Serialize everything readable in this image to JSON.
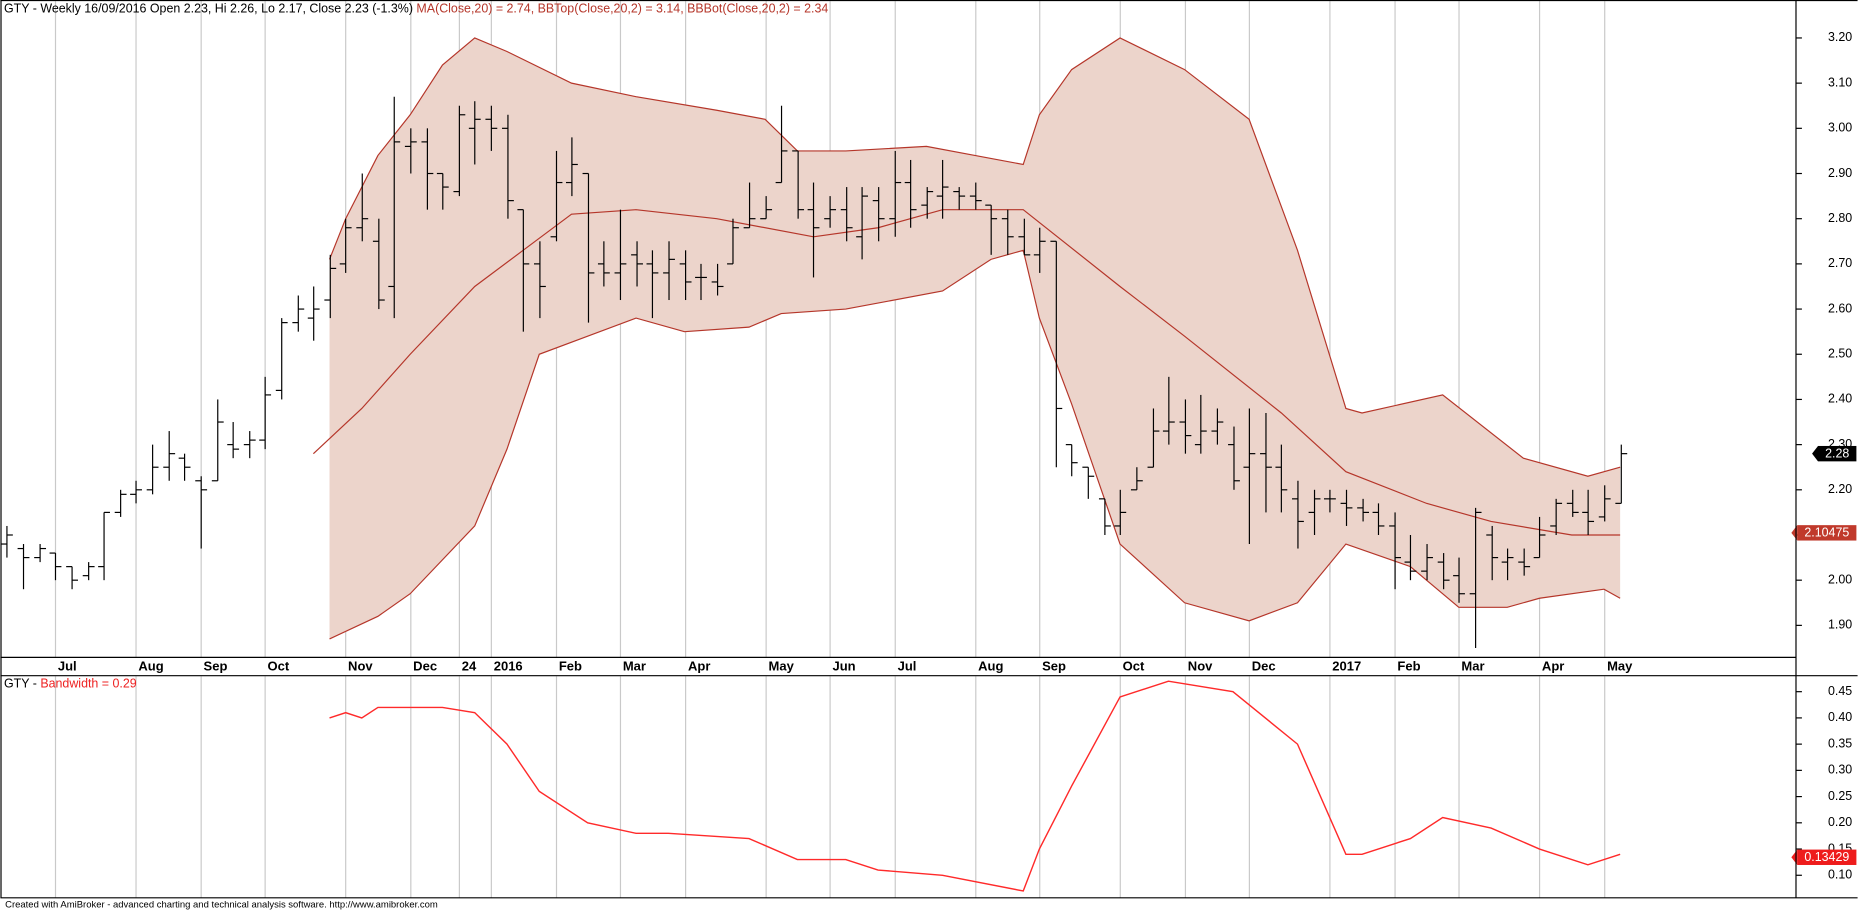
{
  "chart_data": [
    {
      "type": "ohlc",
      "title_parts": [
        {
          "text": "GTY - Weekly 16/09/2016 Open 2.23, Hi 2.26, Lo 2.17, Close 2.23 (-1.3%) ",
          "color": "#000000"
        },
        {
          "text": "MA(Close,20) = 2.74, ",
          "color": "#b5362a"
        },
        {
          "text": "BBTop(Close,20,2) = 3.14, ",
          "color": "#b5362a"
        },
        {
          "text": "BBBot(Close,20,2) = 2.34",
          "color": "#b5362a"
        }
      ],
      "bar_color": "#000000",
      "bars": [
        [
          2.08,
          2.12,
          2.05,
          2.1
        ],
        [
          2.07,
          2.08,
          1.98,
          2.05
        ],
        [
          2.05,
          2.08,
          2.04,
          2.07
        ],
        [
          2.06,
          2.06,
          2.0,
          2.03
        ],
        [
          2.03,
          2.03,
          1.98,
          2.0
        ],
        [
          2.01,
          2.04,
          2.0,
          2.03
        ],
        [
          2.03,
          2.15,
          2.0,
          2.15
        ],
        [
          2.15,
          2.2,
          2.14,
          2.19
        ],
        [
          2.19,
          2.22,
          2.17,
          2.2
        ],
        [
          2.2,
          2.3,
          2.19,
          2.25
        ],
        [
          2.25,
          2.33,
          2.22,
          2.28
        ],
        [
          2.27,
          2.28,
          2.22,
          2.25
        ],
        [
          2.22,
          2.23,
          2.07,
          2.2
        ],
        [
          2.22,
          2.4,
          2.22,
          2.35
        ],
        [
          2.3,
          2.35,
          2.27,
          2.29
        ],
        [
          2.3,
          2.33,
          2.27,
          2.31
        ],
        [
          2.31,
          2.45,
          2.29,
          2.41
        ],
        [
          2.42,
          2.58,
          2.4,
          2.57
        ],
        [
          2.57,
          2.63,
          2.55,
          2.6
        ],
        [
          2.58,
          2.65,
          2.53,
          2.6
        ],
        [
          2.62,
          2.72,
          2.58,
          2.69
        ],
        [
          2.7,
          2.8,
          2.68,
          2.78
        ],
        [
          2.78,
          2.9,
          2.75,
          2.8
        ],
        [
          2.75,
          2.8,
          2.6,
          2.62
        ],
        [
          2.65,
          3.07,
          2.58,
          2.97
        ],
        [
          2.96,
          3.0,
          2.9,
          2.97
        ],
        [
          2.97,
          3.0,
          2.82,
          2.9
        ],
        [
          2.9,
          2.9,
          2.82,
          2.87
        ],
        [
          2.86,
          3.05,
          2.85,
          3.03
        ],
        [
          3.0,
          3.06,
          2.92,
          3.02
        ],
        [
          3.02,
          3.05,
          2.95,
          3.0
        ],
        [
          3.0,
          3.03,
          2.8,
          2.84
        ],
        [
          2.82,
          2.82,
          2.55,
          2.7
        ],
        [
          2.7,
          2.75,
          2.58,
          2.65
        ],
        [
          2.76,
          2.95,
          2.75,
          2.88
        ],
        [
          2.88,
          2.98,
          2.85,
          2.92
        ],
        [
          2.9,
          2.9,
          2.57,
          2.68
        ],
        [
          2.7,
          2.75,
          2.65,
          2.68
        ],
        [
          2.68,
          2.82,
          2.62,
          2.7
        ],
        [
          2.72,
          2.75,
          2.65,
          2.7
        ],
        [
          2.7,
          2.73,
          2.58,
          2.68
        ],
        [
          2.68,
          2.75,
          2.62,
          2.71
        ],
        [
          2.7,
          2.73,
          2.62,
          2.66
        ],
        [
          2.67,
          2.7,
          2.62,
          2.67
        ],
        [
          2.66,
          2.7,
          2.63,
          2.65
        ],
        [
          2.7,
          2.8,
          2.7,
          2.78
        ],
        [
          2.78,
          2.88,
          2.78,
          2.8
        ],
        [
          2.8,
          2.85,
          2.8,
          2.82
        ],
        [
          2.88,
          3.05,
          2.88,
          2.95
        ],
        [
          2.95,
          2.95,
          2.8,
          2.82
        ],
        [
          2.82,
          2.88,
          2.67,
          2.78
        ],
        [
          2.8,
          2.85,
          2.78,
          2.82
        ],
        [
          2.82,
          2.87,
          2.75,
          2.78
        ],
        [
          2.76,
          2.87,
          2.71,
          2.85
        ],
        [
          2.84,
          2.87,
          2.75,
          2.8
        ],
        [
          2.8,
          2.95,
          2.76,
          2.88
        ],
        [
          2.88,
          2.93,
          2.78,
          2.82
        ],
        [
          2.83,
          2.87,
          2.8,
          2.86
        ],
        [
          2.85,
          2.93,
          2.8,
          2.87
        ],
        [
          2.86,
          2.87,
          2.82,
          2.85
        ],
        [
          2.85,
          2.88,
          2.82,
          2.84
        ],
        [
          2.83,
          2.83,
          2.72,
          2.8
        ],
        [
          2.8,
          2.82,
          2.72,
          2.76
        ],
        [
          2.76,
          2.8,
          2.72,
          2.72
        ],
        [
          2.72,
          2.78,
          2.68,
          2.75
        ],
        [
          2.75,
          2.75,
          2.25,
          2.38
        ],
        [
          2.3,
          2.3,
          2.23,
          2.26
        ],
        [
          2.25,
          2.25,
          2.18,
          2.23
        ],
        [
          2.18,
          2.18,
          2.1,
          2.12
        ],
        [
          2.12,
          2.2,
          2.1,
          2.15
        ],
        [
          2.2,
          2.25,
          2.2,
          2.22
        ],
        [
          2.25,
          2.38,
          2.25,
          2.33
        ],
        [
          2.33,
          2.45,
          2.3,
          2.35
        ],
        [
          2.35,
          2.4,
          2.28,
          2.32
        ],
        [
          2.3,
          2.41,
          2.28,
          2.33
        ],
        [
          2.33,
          2.38,
          2.3,
          2.35
        ],
        [
          2.3,
          2.34,
          2.2,
          2.22
        ],
        [
          2.25,
          2.38,
          2.08,
          2.28
        ],
        [
          2.28,
          2.37,
          2.15,
          2.25
        ],
        [
          2.25,
          2.3,
          2.15,
          2.2
        ],
        [
          2.18,
          2.22,
          2.07,
          2.13
        ],
        [
          2.15,
          2.2,
          2.1,
          2.18
        ],
        [
          2.18,
          2.2,
          2.15,
          2.18
        ],
        [
          2.17,
          2.2,
          2.12,
          2.16
        ],
        [
          2.16,
          2.18,
          2.13,
          2.15
        ],
        [
          2.15,
          2.17,
          2.1,
          2.12
        ],
        [
          2.12,
          2.15,
          1.98,
          2.05
        ],
        [
          2.04,
          2.1,
          2.0,
          2.02
        ],
        [
          2.02,
          2.08,
          2.0,
          2.05
        ],
        [
          2.04,
          2.06,
          1.98,
          2.0
        ],
        [
          2.01,
          2.05,
          1.95,
          1.97
        ],
        [
          1.97,
          2.16,
          1.85,
          2.15
        ],
        [
          2.1,
          2.12,
          2.0,
          2.05
        ],
        [
          2.04,
          2.07,
          2.0,
          2.05
        ],
        [
          2.04,
          2.07,
          2.01,
          2.03
        ],
        [
          2.05,
          2.14,
          2.05,
          2.1
        ],
        [
          2.12,
          2.18,
          2.1,
          2.17
        ],
        [
          2.17,
          2.2,
          2.14,
          2.15
        ],
        [
          2.15,
          2.2,
          2.1,
          2.13
        ],
        [
          2.14,
          2.21,
          2.13,
          2.18
        ],
        [
          2.17,
          2.3,
          2.17,
          2.28
        ]
      ],
      "ma": {
        "color": "#b5362a",
        "x": [
          19,
          22,
          25,
          29,
          32,
          35,
          39,
          44,
          50,
          54,
          58,
          63,
          69,
          73,
          79,
          83,
          88,
          92,
          97,
          100
        ],
        "values": [
          2.28,
          2.38,
          2.5,
          2.65,
          2.73,
          2.81,
          2.82,
          2.8,
          2.76,
          2.78,
          2.82,
          2.82,
          2.65,
          2.54,
          2.37,
          2.24,
          2.17,
          2.13,
          2.1,
          2.1
        ]
      },
      "bb_top": {
        "color": "#b5362a",
        "x": [
          20,
          21,
          23,
          25,
          27,
          29,
          31,
          35,
          39,
          44,
          47,
          49,
          52,
          57,
          60,
          63,
          64,
          66,
          69,
          73,
          77,
          80,
          83,
          84,
          89,
          94,
          98,
          100
        ],
        "values": [
          2.71,
          2.8,
          2.94,
          3.03,
          3.14,
          3.2,
          3.17,
          3.1,
          3.07,
          3.04,
          3.02,
          2.95,
          2.95,
          2.96,
          2.94,
          2.92,
          3.03,
          3.13,
          3.2,
          3.13,
          3.02,
          2.73,
          2.38,
          2.37,
          2.41,
          2.27,
          2.23,
          2.25
        ]
      },
      "bb_bot": {
        "color": "#b5362a",
        "x": [
          20,
          23,
          25,
          29,
          31,
          33,
          36,
          39,
          42,
          46,
          48,
          52,
          58,
          61,
          63,
          64,
          66,
          69,
          73,
          77,
          80,
          83,
          87,
          90,
          93,
          95,
          99,
          100
        ],
        "values": [
          1.87,
          1.92,
          1.97,
          2.12,
          2.29,
          2.5,
          2.54,
          2.58,
          2.55,
          2.56,
          2.59,
          2.6,
          2.64,
          2.71,
          2.73,
          2.58,
          2.39,
          2.08,
          1.95,
          1.91,
          1.95,
          2.08,
          2.03,
          1.94,
          1.94,
          1.96,
          1.98,
          1.96
        ]
      },
      "band_fill": "#ecd4cb",
      "xlim": [
        -0.4,
        110.9
      ],
      "xticks": [
        {
          "value": 3,
          "label": "Jul"
        },
        {
          "value": 8,
          "label": "Aug"
        },
        {
          "value": 12,
          "label": "Sep"
        },
        {
          "value": 16,
          "label": "Oct"
        },
        {
          "value": 21,
          "label": "Nov"
        },
        {
          "value": 25,
          "label": "Dec"
        },
        {
          "value": 28,
          "label": "24"
        },
        {
          "value": 30,
          "label": "2016"
        },
        {
          "value": 34,
          "label": "Feb"
        },
        {
          "value": 38,
          "label": "Mar"
        },
        {
          "value": 42,
          "label": "Apr"
        },
        {
          "value": 47,
          "label": "May"
        },
        {
          "value": 51,
          "label": "Jun"
        },
        {
          "value": 55,
          "label": "Jul"
        },
        {
          "value": 60,
          "label": "Aug"
        },
        {
          "value": 64,
          "label": "Sep"
        },
        {
          "value": 69,
          "label": "Oct"
        },
        {
          "value": 73,
          "label": "Nov"
        },
        {
          "value": 77,
          "label": "Dec"
        },
        {
          "value": 82,
          "label": "2017"
        },
        {
          "value": 86,
          "label": "Feb"
        },
        {
          "value": 90,
          "label": "Mar"
        },
        {
          "value": 95,
          "label": "Apr"
        },
        {
          "value": 99,
          "label": "May"
        }
      ],
      "ylim": [
        1.83,
        3.23
      ],
      "yticks": [
        {
          "value": 1.9,
          "label": "1.90"
        },
        {
          "value": 2.0,
          "label": "2.00"
        },
        {
          "value": 2.1,
          "label": "2.10"
        },
        {
          "value": 2.2,
          "label": "2.20"
        },
        {
          "value": 2.3,
          "label": "2.30"
        },
        {
          "value": 2.4,
          "label": "2.40"
        },
        {
          "value": 2.5,
          "label": "2.50"
        },
        {
          "value": 2.6,
          "label": "2.60"
        },
        {
          "value": 2.7,
          "label": "2.70"
        },
        {
          "value": 2.8,
          "label": "2.80"
        },
        {
          "value": 2.9,
          "label": "2.90"
        },
        {
          "value": 3.0,
          "label": "3.00"
        },
        {
          "value": 3.1,
          "label": "3.10"
        },
        {
          "value": 3.2,
          "label": "3.20"
        }
      ],
      "markers": [
        {
          "value": 2.28,
          "label": "2.28",
          "color": "#000000"
        },
        {
          "value": 2.10475,
          "label": "2.10475",
          "color": "#c0392b"
        }
      ]
    },
    {
      "type": "line",
      "title_parts": [
        {
          "text": "GTY - ",
          "color": "#000000"
        },
        {
          "text": "Bandwidth = 0.29",
          "color": "#ee2222"
        }
      ],
      "color": "#ff2a2a",
      "x": [
        20,
        21,
        22,
        23,
        25,
        27,
        29,
        31,
        33,
        36,
        39,
        41,
        46,
        49,
        52,
        54,
        58,
        63,
        64,
        66,
        69,
        72,
        76,
        80,
        83,
        84,
        87,
        89,
        92,
        95,
        98,
        100
      ],
      "values": [
        0.4,
        0.41,
        0.4,
        0.42,
        0.42,
        0.42,
        0.41,
        0.35,
        0.26,
        0.2,
        0.18,
        0.18,
        0.17,
        0.13,
        0.13,
        0.11,
        0.1,
        0.07,
        0.15,
        0.27,
        0.44,
        0.47,
        0.45,
        0.35,
        0.14,
        0.14,
        0.17,
        0.21,
        0.19,
        0.15,
        0.12,
        0.14
      ],
      "xlim": [
        -0.4,
        110.9
      ],
      "ylim": [
        0.06,
        0.48
      ],
      "yticks": [
        {
          "value": 0.1,
          "label": "0.10"
        },
        0.15,
        {
          "value": 0.2,
          "label": "0.20"
        },
        0.25,
        {
          "value": 0.3,
          "label": "0.30"
        },
        0.35,
        {
          "value": 0.4,
          "label": "0.40"
        },
        0.45
      ],
      "markers": [
        {
          "value": 0.13429,
          "label": "0.13429",
          "color": "#ee1c1c"
        }
      ]
    }
  ],
  "footer": "Created with AmiBroker - advanced charting and technical analysis software. http://www.amibroker.com"
}
